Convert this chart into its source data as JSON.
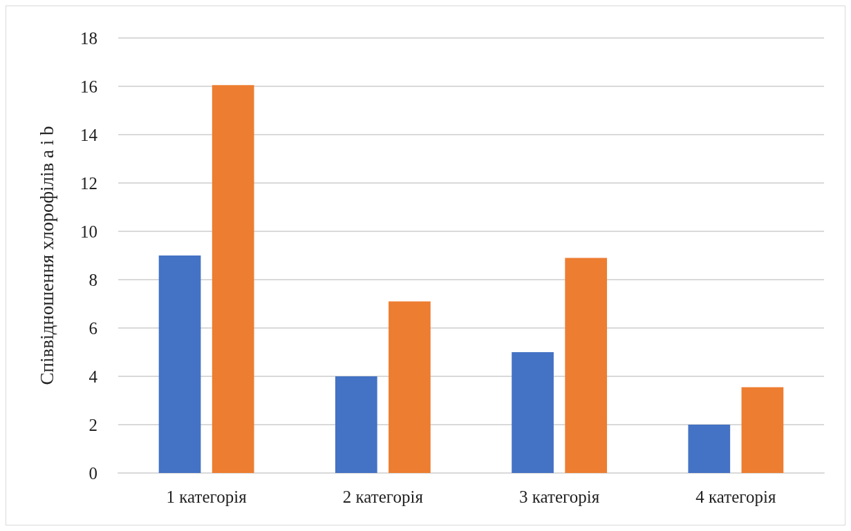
{
  "chart_data": {
    "type": "bar",
    "ylabel": "Співвідношення хлорофілів a і b",
    "categories": [
      "1 категорія",
      "2 категорія",
      "3 категорія",
      "4 категорія"
    ],
    "series": [
      {
        "color": "#4472c4",
        "values": [
          9,
          4,
          5,
          2
        ]
      },
      {
        "color": "#ed7d31",
        "values": [
          16.05,
          7.1,
          8.9,
          3.55
        ]
      }
    ],
    "ylim": [
      0,
      18
    ],
    "yticks": [
      0,
      2,
      4,
      6,
      8,
      10,
      12,
      14,
      16,
      18
    ],
    "grid": "y"
  }
}
